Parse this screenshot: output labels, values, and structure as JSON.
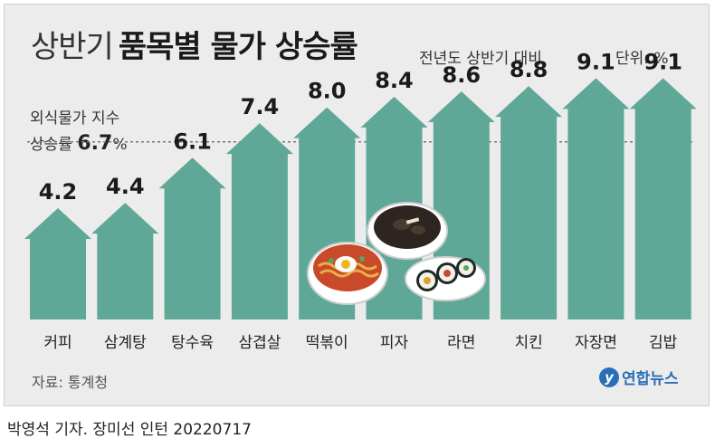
{
  "header": {
    "title_prefix": "상반기",
    "title_main": "품목별 물가 상승률",
    "subtitle": "전년도 상반기 대비",
    "unit": "단위: %"
  },
  "reference": {
    "line1": "외식물가 지수",
    "line2_prefix": "상승률 ",
    "value": "6.7",
    "pct": "%"
  },
  "source": "자료: 통계청",
  "logo": {
    "mark": "y",
    "text": "연합뉴스"
  },
  "byline": "박영석 기자. 장미선 인턴  20220717",
  "chart_data": {
    "type": "bar",
    "categories": [
      "커피",
      "삼계탕",
      "탕수육",
      "삼겹살",
      "떡볶이",
      "피자",
      "라면",
      "치킨",
      "자장면",
      "김밥"
    ],
    "values": [
      4.2,
      4.4,
      6.1,
      7.4,
      8.0,
      8.4,
      8.6,
      8.8,
      9.1,
      9.1
    ],
    "value_labels": [
      "4.2",
      "4.4",
      "6.1",
      "7.4",
      "8.0",
      "8.4",
      "8.6",
      "8.8",
      "9.1",
      "9.1"
    ],
    "reference_line": 6.7,
    "bar_color": "#5fa898",
    "mark_style": "upward-arrow"
  },
  "icons": [
    "ramen-icon",
    "jajangmyeon-icon",
    "gimbap-icon"
  ]
}
